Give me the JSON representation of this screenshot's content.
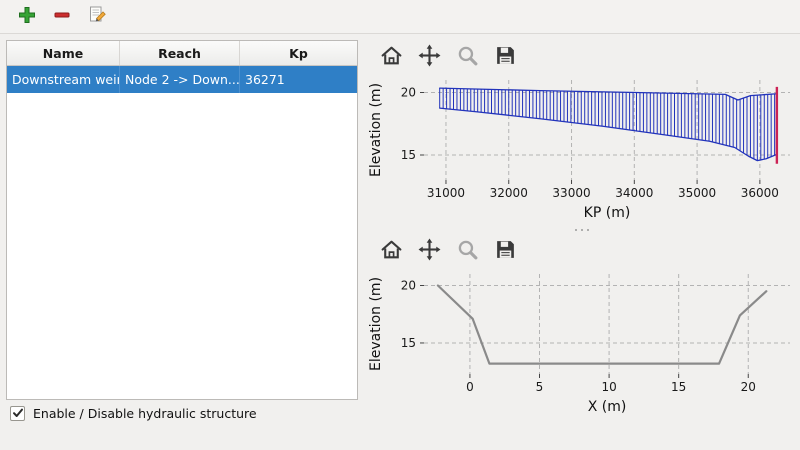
{
  "header_toolbar": {
    "buttons": [
      {
        "name": "add-structure",
        "icon": "plus-icon"
      },
      {
        "name": "remove-structure",
        "icon": "minus-icon"
      },
      {
        "name": "edit-structure",
        "icon": "edit-icon"
      }
    ]
  },
  "structures_table": {
    "columns": [
      "Name",
      "Reach",
      "Kp"
    ],
    "rows": [
      {
        "name": "Downstream weir",
        "reach": "Node 2 -> Down...",
        "kp": "36271",
        "selected": true
      }
    ]
  },
  "checkbox": {
    "label": "Enable / Disable hydraulic structure",
    "checked": true
  },
  "plot_toolbar": {
    "buttons": [
      "home",
      "pan",
      "zoom",
      "save"
    ]
  },
  "colors": {
    "selection": "#2f7fc6",
    "hatch": "#2233bb",
    "marker_line": "#cc2255",
    "cross_section_line": "#8a8a8a",
    "grid": "#b3b3b3"
  },
  "chart_data": [
    {
      "type": "area",
      "title": "",
      "xlabel": "KP (m)",
      "ylabel": "Elevation (m)",
      "xlim": [
        30650,
        36480
      ],
      "ylim": [
        13,
        21
      ],
      "xticks": [
        31000,
        32000,
        33000,
        34000,
        35000,
        36000
      ],
      "yticks": [
        15,
        20
      ],
      "grid": true,
      "hatch_between": [
        "crest",
        "bed"
      ],
      "hatch_step": 55,
      "hatch_color": "#2233bb",
      "series": [
        {
          "name": "crest",
          "color": "#2233bb",
          "width": 1.3,
          "x": [
            30900,
            32500,
            34500,
            35450,
            35650,
            35850,
            36270
          ],
          "y": [
            20.35,
            20.15,
            19.95,
            19.85,
            19.4,
            19.75,
            19.9
          ]
        },
        {
          "name": "bed",
          "color": "#2233bb",
          "width": 1.3,
          "x": [
            30900,
            31500,
            32500,
            33500,
            34500,
            35200,
            35600,
            35820,
            35960,
            36100,
            36270
          ],
          "y": [
            18.75,
            18.45,
            17.9,
            17.3,
            16.6,
            16.1,
            15.6,
            14.9,
            14.55,
            14.7,
            15.05
          ]
        }
      ],
      "vline": {
        "x": 36271,
        "y0": 14.3,
        "y1": 20.45,
        "color": "#cc2255"
      }
    },
    {
      "type": "line",
      "title": "",
      "xlabel": "X (m)",
      "ylabel": "Elevation (m)",
      "xlim": [
        -3.3,
        23
      ],
      "ylim": [
        12.3,
        21
      ],
      "xticks": [
        0,
        5,
        10,
        15,
        20
      ],
      "yticks": [
        15,
        20
      ],
      "grid": true,
      "series": [
        {
          "name": "cross-section",
          "color": "#8a8a8a",
          "width": 2.2,
          "x": [
            -2.3,
            0.2,
            1.4,
            17.9,
            19.4,
            21.3
          ],
          "y": [
            20.0,
            17.1,
            13.2,
            13.2,
            17.4,
            19.5
          ]
        }
      ]
    }
  ]
}
